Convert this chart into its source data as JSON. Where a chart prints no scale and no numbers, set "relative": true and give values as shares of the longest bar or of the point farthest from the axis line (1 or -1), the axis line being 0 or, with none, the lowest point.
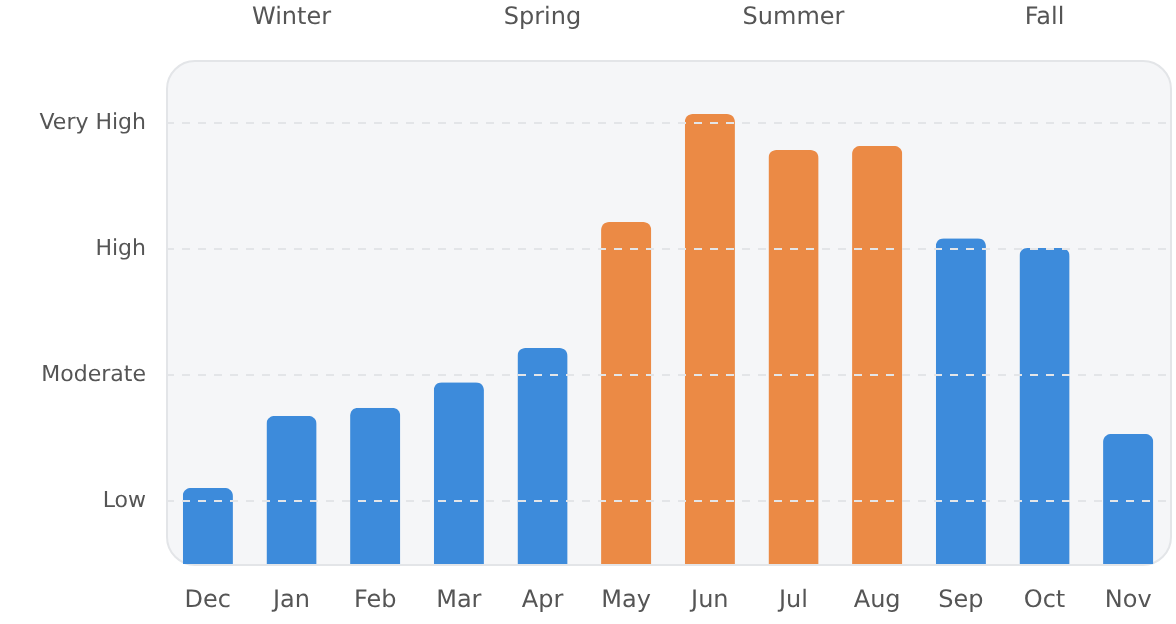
{
  "chart_data": {
    "type": "bar",
    "relative": true,
    "categories": [
      "Dec",
      "Jan",
      "Feb",
      "Mar",
      "Apr",
      "May",
      "Jun",
      "Jul",
      "Aug",
      "Sep",
      "Oct",
      "Nov"
    ],
    "values": [
      0.169,
      0.329,
      0.347,
      0.404,
      0.48,
      0.76,
      1,
      0.92,
      0.929,
      0.724,
      0.702,
      0.289
    ],
    "colors": [
      "#3d8bdb",
      "#3d8bdb",
      "#3d8bdb",
      "#3d8bdb",
      "#3d8bdb",
      "#eb8a45",
      "#eb8a45",
      "#eb8a45",
      "#eb8a45",
      "#3d8bdb",
      "#3d8bdb",
      "#3d8bdb"
    ],
    "grid": "y",
    "annotations": [
      "Winter",
      "Spring",
      "Summer",
      "Fall",
      "Low",
      "Moderate",
      "High",
      "Very High"
    ]
  }
}
